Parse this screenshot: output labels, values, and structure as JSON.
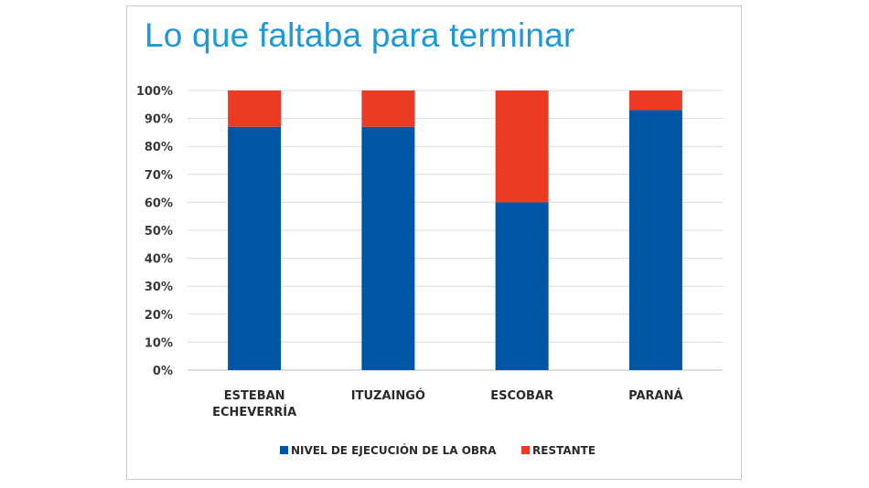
{
  "title": "Lo que faltaba para terminar",
  "colors": {
    "title": "#1a9ad9",
    "executed": "#0055a5",
    "remaining": "#ec3b25"
  },
  "chart_data": {
    "type": "bar",
    "stacked": true,
    "categories": [
      [
        "ESTEBAN",
        "ECHEVERRÍA"
      ],
      [
        "ITUZAINGÓ"
      ],
      [
        "ESCOBAR"
      ],
      [
        "PARANÁ"
      ]
    ],
    "series": [
      {
        "name": "NIVEL DE EJECUCIÓN DE LA OBRA",
        "values": [
          87,
          87,
          60,
          93
        ],
        "color": "#0055a5"
      },
      {
        "name": "RESTANTE",
        "values": [
          13,
          13,
          40,
          7
        ],
        "color": "#ec3b25"
      }
    ],
    "ylim": [
      0,
      100
    ],
    "yticks": [
      "0%",
      "10%",
      "20%",
      "30%",
      "40%",
      "50%",
      "60%",
      "70%",
      "80%",
      "90%",
      "100%"
    ],
    "grid": true,
    "legend_position": "bottom"
  }
}
